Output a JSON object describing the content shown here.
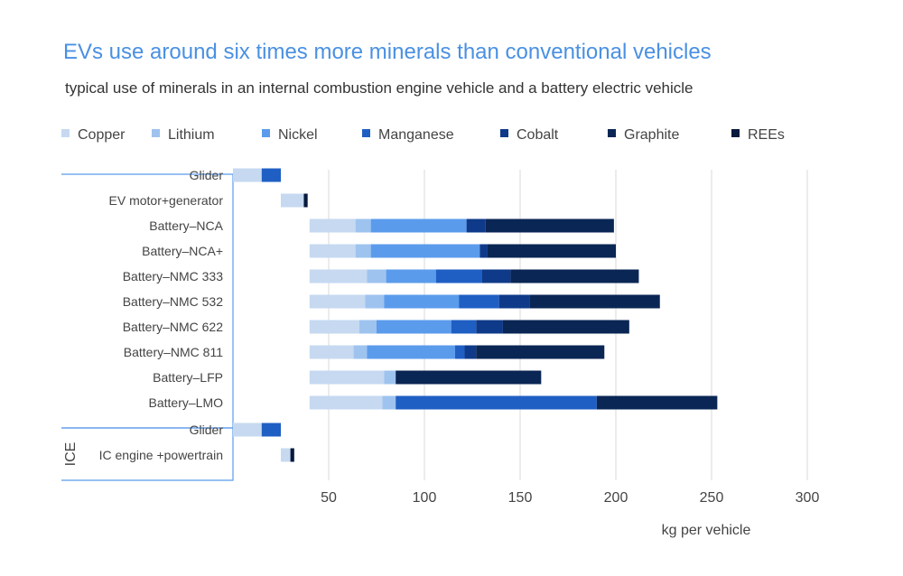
{
  "title": "EVs use around six times more minerals than conventional vehicles",
  "subtitle": "typical use of minerals in an internal combustion engine vehicle and a battery electric vehicle",
  "chart_data": {
    "type": "bar",
    "orientation": "horizontal",
    "stacked": true,
    "xlabel": "kg per vehicle",
    "xticks": [
      50,
      100,
      150,
      200,
      250,
      300
    ],
    "xlim": [
      0,
      300
    ],
    "grid": true,
    "legend_position": "top",
    "groups": [
      {
        "label": "",
        "start": 0,
        "count": 10
      },
      {
        "label": "ICE",
        "start": 10,
        "count": 2
      }
    ],
    "categories": [
      "Glider",
      "EV motor+generator",
      "Battery–NCA",
      "Battery–NCA+",
      "Battery–NMC 333",
      "Battery–NMC 532",
      "Battery–NMC 622",
      "Battery–NMC 811",
      "Battery–LFP",
      "Battery–LMO",
      "Glider",
      "IC engine +powertrain"
    ],
    "bases": [
      0,
      25,
      40,
      40,
      40,
      40,
      40,
      40,
      40,
      40,
      0,
      25
    ],
    "series": [
      {
        "name": "Copper",
        "color": "#c6d9f1",
        "values": [
          15,
          12,
          24,
          24,
          30,
          29,
          26,
          23,
          39,
          38,
          15,
          5
        ]
      },
      {
        "name": "Lithium",
        "color": "#9ec3ef",
        "values": [
          0,
          0,
          8,
          8,
          10,
          10,
          9,
          7,
          6,
          7,
          0,
          0
        ]
      },
      {
        "name": "Nickel",
        "color": "#5b9bec",
        "values": [
          0,
          0,
          50,
          57,
          26,
          39,
          39,
          46,
          0,
          0,
          0,
          0
        ]
      },
      {
        "name": "Manganese",
        "color": "#1f5fc4",
        "values": [
          10,
          0,
          0,
          0,
          24,
          21,
          13,
          5,
          0,
          105,
          10,
          0
        ]
      },
      {
        "name": "Cobalt",
        "color": "#0f3a8a",
        "values": [
          0,
          0,
          10,
          4,
          15,
          16,
          14,
          6,
          0,
          0,
          0,
          0
        ]
      },
      {
        "name": "Graphite",
        "color": "#0a2654",
        "values": [
          0,
          0,
          67,
          67,
          67,
          68,
          66,
          67,
          76,
          63,
          0,
          0
        ]
      },
      {
        "name": "REEs",
        "color": "#07193d",
        "values": [
          0,
          2,
          0,
          0,
          0,
          0,
          0,
          0,
          0,
          0,
          0,
          2
        ]
      }
    ]
  }
}
